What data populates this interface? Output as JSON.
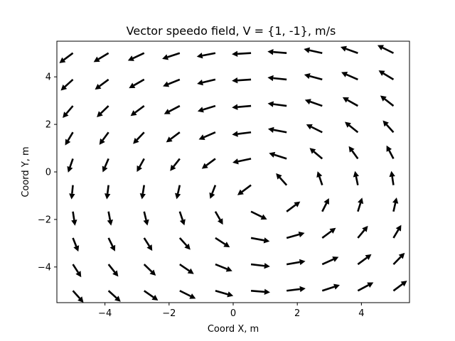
{
  "chart_data": {
    "type": "quiver",
    "title": "Vector speedo field, V = {1, -1}, m/s",
    "xlabel": "Coord X, m",
    "ylabel": "Coord Y, m",
    "xlim": [
      -5.5,
      5.5
    ],
    "ylim": [
      -5.5,
      5.5
    ],
    "xticks": [
      -4,
      -2,
      0,
      2,
      4
    ],
    "yticks": [
      -4,
      -2,
      0,
      2,
      4
    ],
    "xtick_labels": [
      "−4",
      "−2",
      "0",
      "2",
      "4"
    ],
    "ytick_labels": [
      "−4",
      "−2",
      "0",
      "2",
      "4"
    ],
    "grid": [
      -5,
      -3.889,
      -2.778,
      -1.667,
      -0.556,
      0.556,
      1.667,
      2.778,
      3.889,
      5
    ],
    "field": "vortex",
    "center": [
      1,
      -1
    ],
    "arrow_length": 0.6,
    "arrow_color": "#000000",
    "grid_lines": false,
    "legend": "none"
  }
}
